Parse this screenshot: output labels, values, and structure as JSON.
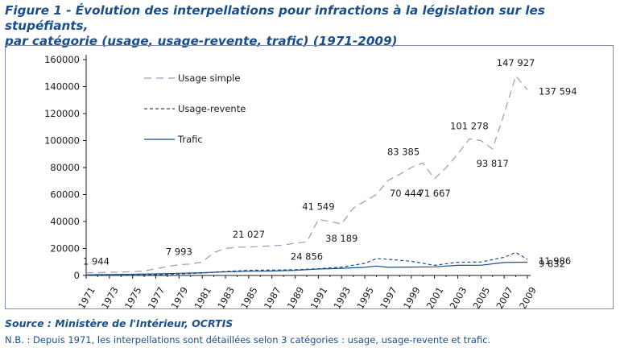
{
  "figure": {
    "title_line1": "Figure 1 - Évolution des interpellations pour infractions à la législation sur les stupéfiants,",
    "title_line2": "par catégorie (usage, usage-revente, trafic) (1971-2009)",
    "source": "Source : Ministère de l'Intérieur, OCRTIS",
    "note": "N.B. : Depuis 1971, les interpellations sont détaillées selon 3 catégories : usage, usage-revente et trafic."
  },
  "chart_data": {
    "type": "line",
    "title": "Évolution des interpellations pour infractions à la législation sur les stupéfiants, par catégorie (usage, usage-revente, trafic) (1971-2009)",
    "xlabel": "",
    "ylabel": "",
    "ylim": [
      0,
      160000
    ],
    "yticks": [
      0,
      20000,
      40000,
      60000,
      80000,
      100000,
      120000,
      140000,
      160000
    ],
    "ytick_labels": [
      "0",
      "20000",
      "40000",
      "60000",
      "80000",
      "100000",
      "120000",
      "140000",
      "160000"
    ],
    "xticks": [
      1971,
      1973,
      1975,
      1977,
      1979,
      1981,
      1983,
      1985,
      1987,
      1989,
      1991,
      1993,
      1995,
      1997,
      1999,
      2001,
      2003,
      2005,
      2007,
      2009
    ],
    "xtick_labels": [
      "1971",
      "1973",
      "1975",
      "1977",
      "1979",
      "1981",
      "1983",
      "1985",
      "1987",
      "1989",
      "1991",
      "1993",
      "1995",
      "1997",
      "1999",
      "2001",
      "2003",
      "2005",
      "2007",
      "2009"
    ],
    "legend_position": "top-left",
    "grid": false,
    "series": [
      {
        "name": "Usage simple",
        "color": "#8ea0bd",
        "style": "longdash",
        "x": [
          1971,
          1972,
          1973,
          1974,
          1975,
          1976,
          1977,
          1978,
          1979,
          1980,
          1981,
          1982,
          1983,
          1984,
          1985,
          1986,
          1987,
          1988,
          1989,
          1990,
          1991,
          1992,
          1993,
          1994,
          1995,
          1996,
          1997,
          1998,
          1999,
          2000,
          2001,
          2002,
          2003,
          2004,
          2005,
          2006,
          2007,
          2008,
          2009
        ],
        "values": [
          1944,
          2100,
          2300,
          2500,
          2800,
          3200,
          5000,
          6500,
          7993,
          8500,
          10000,
          17000,
          20000,
          21000,
          21027,
          21500,
          22000,
          22500,
          24000,
          24856,
          41549,
          40000,
          38189,
          50000,
          55000,
          60000,
          70444,
          75000,
          80000,
          83385,
          71667,
          80000,
          90000,
          101278,
          100000,
          93817,
          120000,
          147927,
          137594
        ]
      },
      {
        "name": "Usage-revente",
        "color": "#1a4e8c",
        "style": "shortdash",
        "x": [
          1971,
          1973,
          1975,
          1977,
          1979,
          1981,
          1983,
          1985,
          1987,
          1989,
          1991,
          1993,
          1995,
          1996,
          1997,
          1999,
          2001,
          2003,
          2005,
          2007,
          2008,
          2009
        ],
        "values": [
          100,
          200,
          300,
          600,
          1000,
          1800,
          3000,
          3800,
          4000,
          4300,
          5000,
          6200,
          9000,
          12500,
          12000,
          10500,
          7500,
          9800,
          10000,
          13500,
          17000,
          11986
        ]
      },
      {
        "name": "Trafic",
        "color": "#1a4e8c",
        "style": "solid",
        "x": [
          1971,
          1973,
          1975,
          1977,
          1979,
          1981,
          1983,
          1985,
          1987,
          1989,
          1991,
          1993,
          1995,
          1996,
          1997,
          1999,
          2001,
          2003,
          2005,
          2007,
          2009
        ],
        "values": [
          500,
          700,
          900,
          1200,
          1600,
          2000,
          2700,
          3100,
          3300,
          3800,
          4800,
          5300,
          6000,
          7000,
          6000,
          6200,
          6400,
          7500,
          7600,
          9600,
          9832
        ]
      }
    ],
    "annotations": [
      {
        "text": "1 944",
        "x": 1971,
        "y": 1944,
        "series": "Usage simple",
        "place": "above-right"
      },
      {
        "text": "7 993",
        "x": 1979,
        "y": 7993,
        "series": "Usage simple",
        "place": "above"
      },
      {
        "text": "21 027",
        "x": 1985,
        "y": 21027,
        "series": "Usage simple",
        "place": "above"
      },
      {
        "text": "24 856",
        "x": 1990,
        "y": 24856,
        "series": "Usage simple",
        "place": "below"
      },
      {
        "text": "41 549",
        "x": 1991,
        "y": 41549,
        "series": "Usage simple",
        "place": "above"
      },
      {
        "text": "38 189",
        "x": 1993,
        "y": 38189,
        "series": "Usage simple",
        "place": "below"
      },
      {
        "text": "70 444",
        "x": 1997,
        "y": 70444,
        "series": "Usage simple",
        "place": "below-right"
      },
      {
        "text": "83 385",
        "x": 2000,
        "y": 83385,
        "series": "Usage simple",
        "place": "above-left"
      },
      {
        "text": "71 667",
        "x": 2001,
        "y": 71667,
        "series": "Usage simple",
        "place": "below"
      },
      {
        "text": "101 278",
        "x": 2004,
        "y": 101278,
        "series": "Usage simple",
        "place": "above"
      },
      {
        "text": "93 817",
        "x": 2006,
        "y": 93817,
        "series": "Usage simple",
        "place": "below"
      },
      {
        "text": "147 927",
        "x": 2008,
        "y": 147927,
        "series": "Usage simple",
        "place": "above"
      },
      {
        "text": "137 594",
        "x": 2009,
        "y": 137594,
        "series": "Usage simple",
        "place": "right"
      },
      {
        "text": "11 986",
        "x": 2009,
        "y": 11986,
        "series": "Usage-revente",
        "place": "right"
      },
      {
        "text": "9 832",
        "x": 2009,
        "y": 9832,
        "series": "Trafic",
        "place": "right"
      }
    ]
  }
}
